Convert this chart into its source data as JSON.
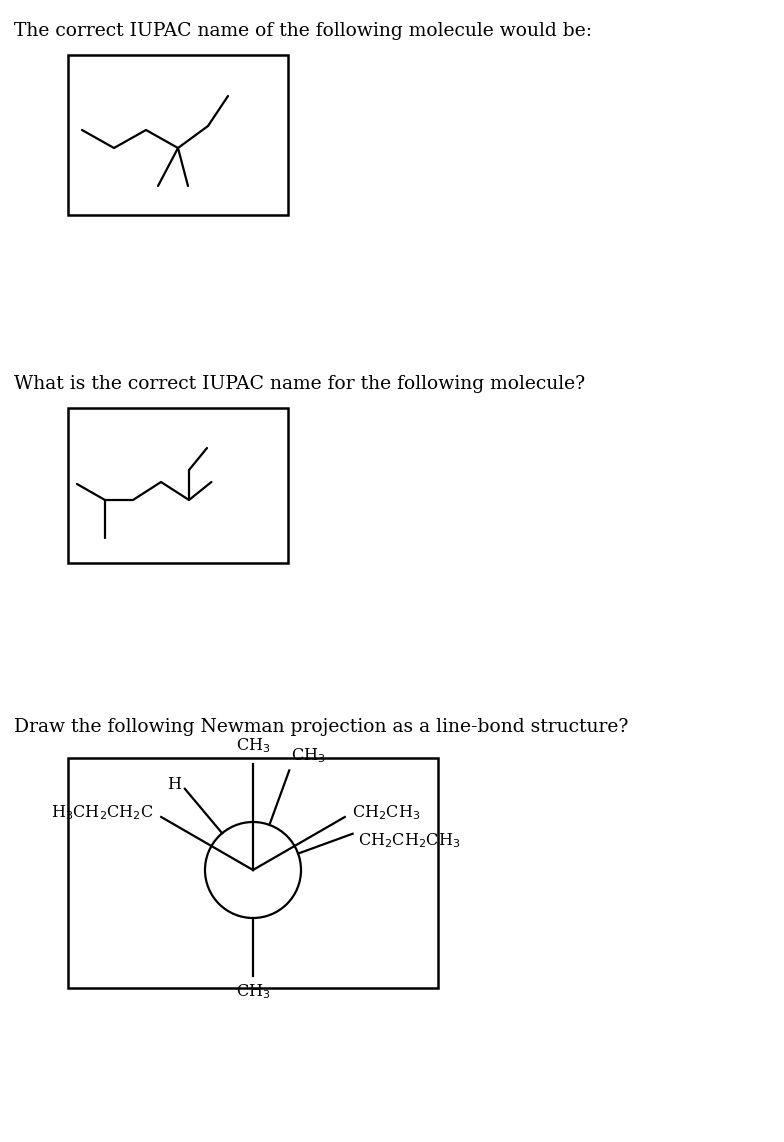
{
  "bg_color": "#ffffff",
  "text_color": "#000000",
  "q1_text": "The correct IUPAC name of the following molecule would be:",
  "q2_text": "What is the correct IUPAC name for the following molecule?",
  "q3_text": "Draw the following Newman projection as a line-bond structure?",
  "font_size_question": 13.5,
  "font_size_chem": 11.5,
  "line_width": 1.6
}
